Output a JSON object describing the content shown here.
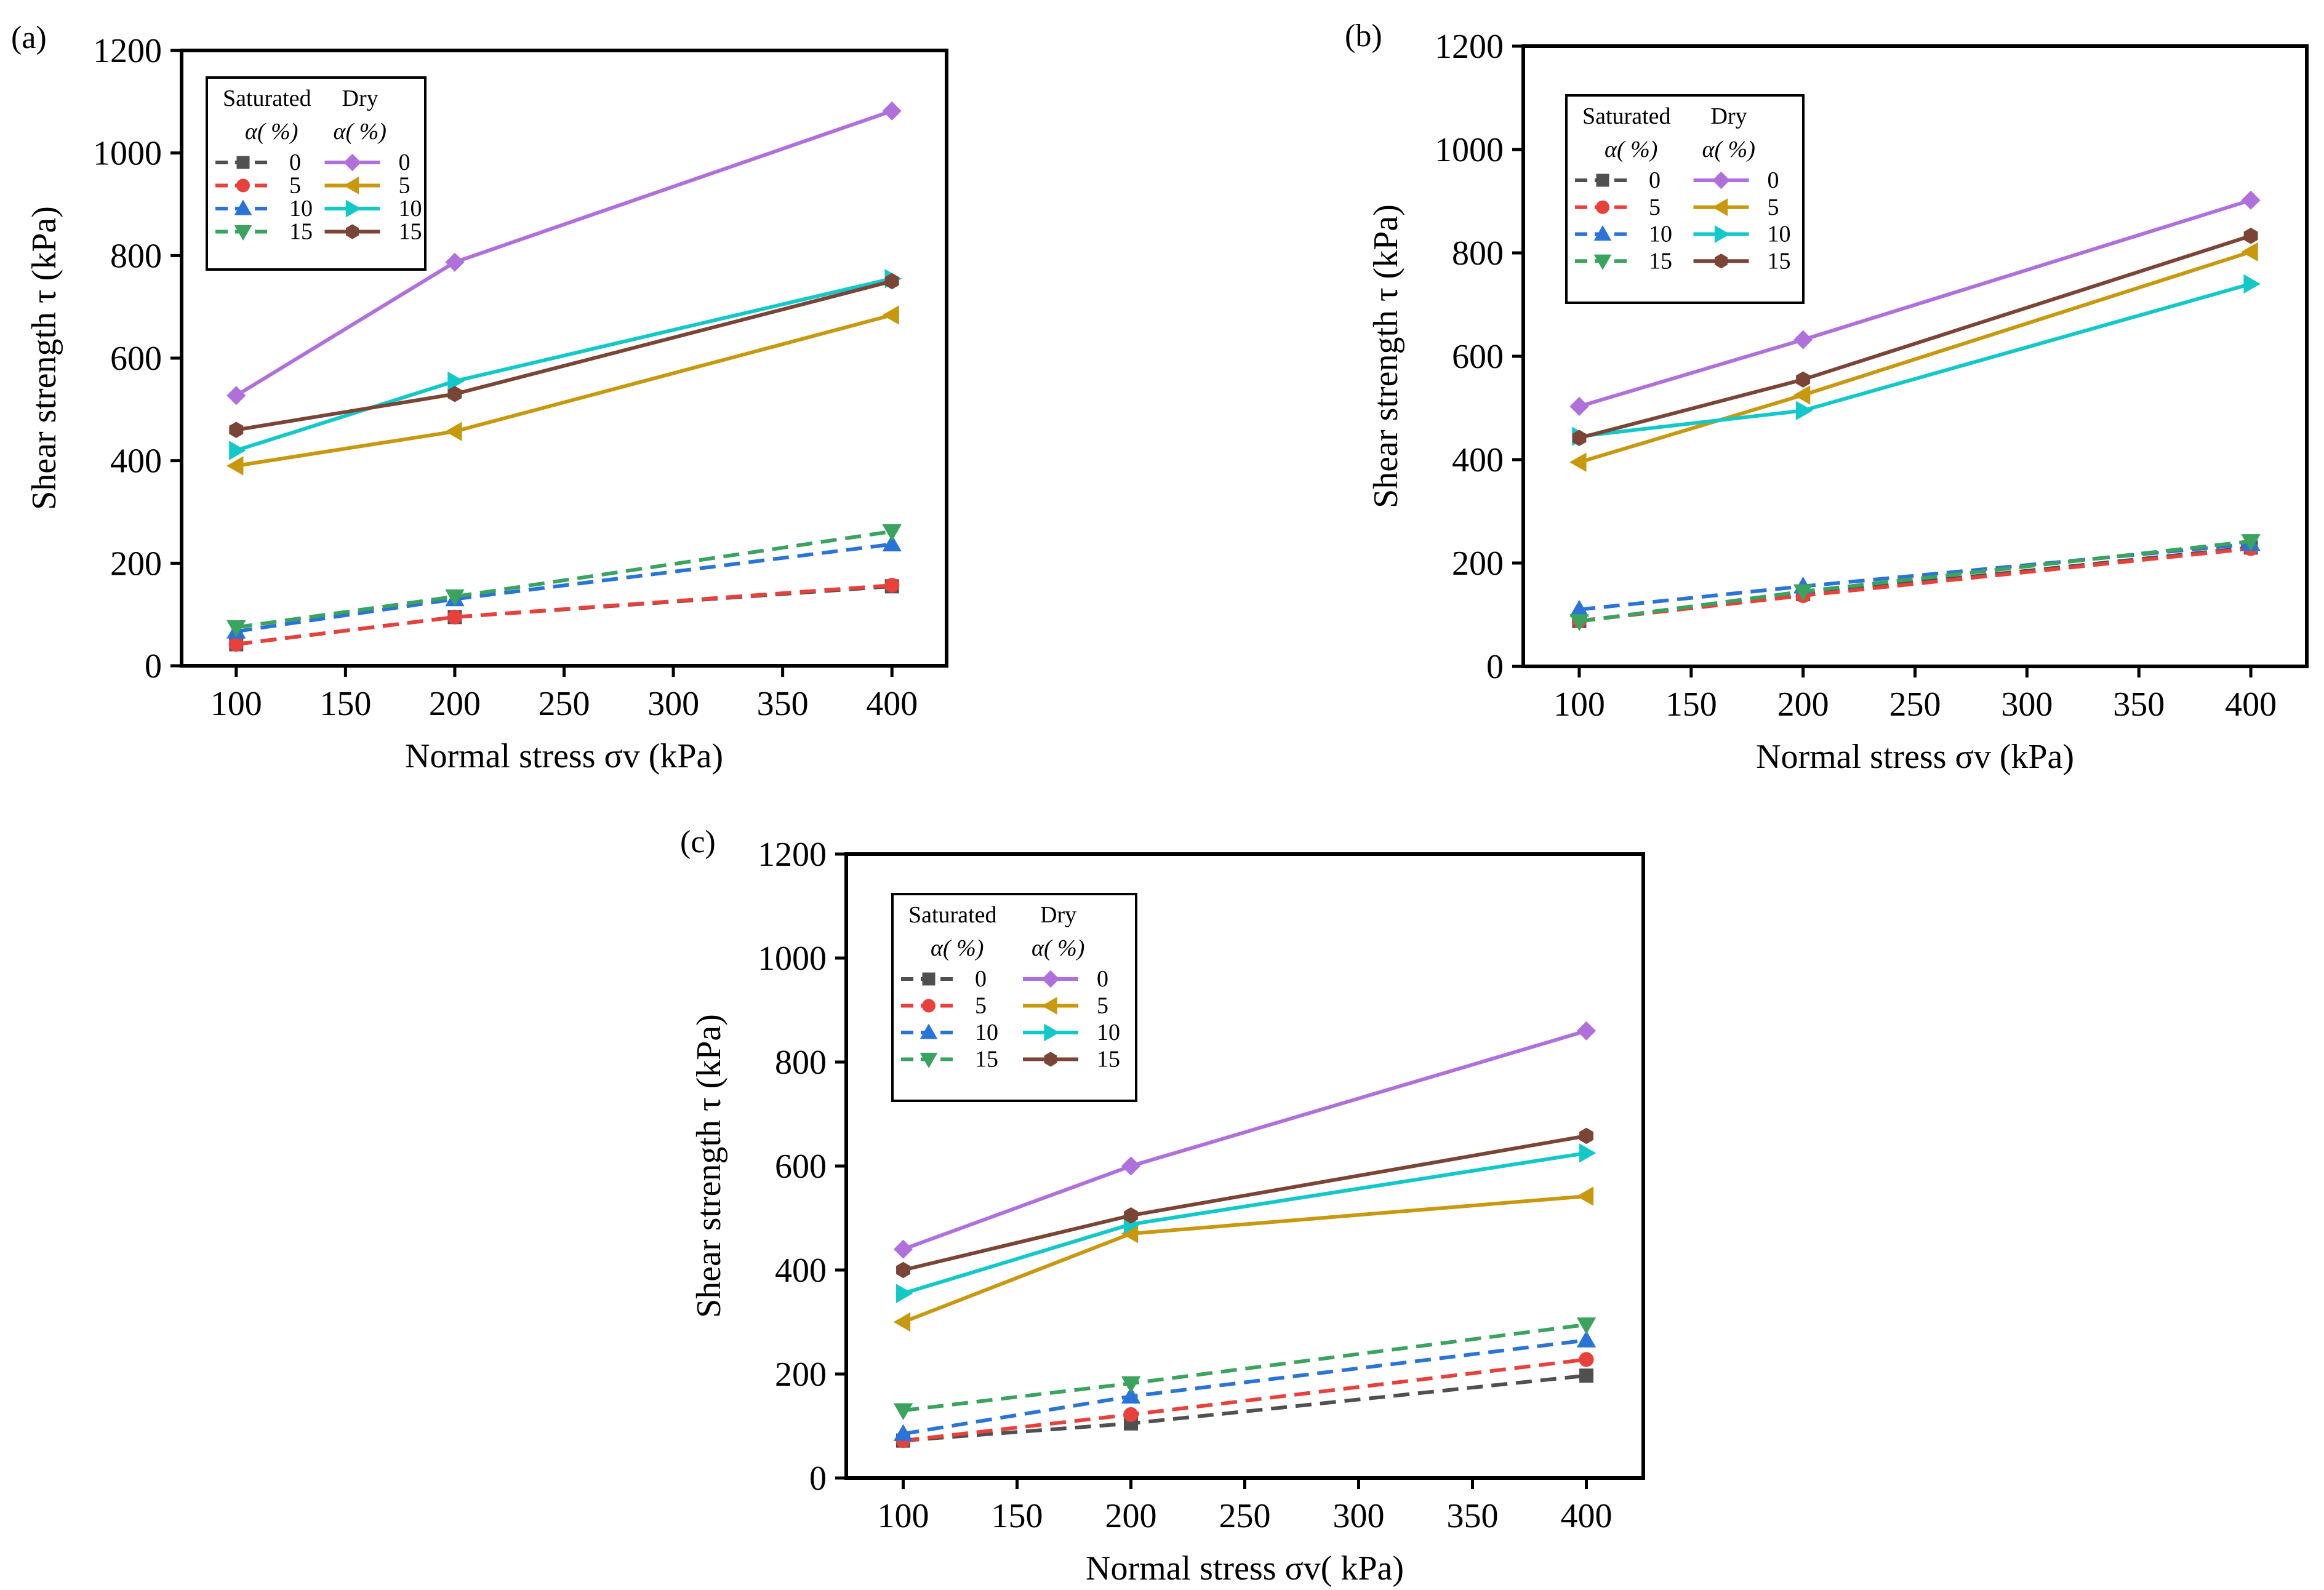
{
  "legend_header": {
    "saturated": "Saturated",
    "dry": "Dry",
    "alpha_label": "α(  %)"
  },
  "chart_data": [
    {
      "id": "a",
      "panel_label": "(a)",
      "type": "line",
      "xlabel": "Normal stress σv (kPa)",
      "ylabel": "Shear strength τ (kPa)",
      "xlim": [
        75,
        425
      ],
      "ylim": [
        0,
        1200
      ],
      "xticks": [
        100,
        150,
        200,
        250,
        300,
        350,
        400
      ],
      "yticks": [
        0,
        200,
        400,
        600,
        800,
        1000,
        1200
      ],
      "x": [
        100,
        200,
        400
      ],
      "series": [
        {
          "name": "0",
          "group": "Saturated",
          "dashed": true,
          "marker": "square",
          "color": "#505050",
          "values": [
            42,
            95,
            155
          ]
        },
        {
          "name": "5",
          "group": "Saturated",
          "dashed": true,
          "marker": "circle",
          "color": "#e8403a",
          "values": [
            42,
            95,
            157
          ]
        },
        {
          "name": "10",
          "group": "Saturated",
          "dashed": true,
          "marker": "triangle-up",
          "color": "#2a74d8",
          "values": [
            67,
            130,
            237
          ]
        },
        {
          "name": "15",
          "group": "Saturated",
          "dashed": true,
          "marker": "triangle-down",
          "color": "#3aa35e",
          "values": [
            75,
            135,
            262
          ]
        },
        {
          "name": "0",
          "group": "Dry",
          "dashed": false,
          "marker": "diamond",
          "color": "#b070dc",
          "values": [
            527,
            787,
            1082
          ]
        },
        {
          "name": "5",
          "group": "Dry",
          "dashed": false,
          "marker": "triangle-left",
          "color": "#c8980e",
          "values": [
            390,
            457,
            684
          ]
        },
        {
          "name": "10",
          "group": "Dry",
          "dashed": false,
          "marker": "triangle-right",
          "color": "#12c8c8",
          "values": [
            420,
            555,
            755
          ]
        },
        {
          "name": "15",
          "group": "Dry",
          "dashed": false,
          "marker": "hexagon",
          "color": "#7a4536",
          "values": [
            460,
            530,
            750
          ]
        }
      ]
    },
    {
      "id": "b",
      "panel_label": "(b)",
      "type": "line",
      "xlabel": "Normal stress σv (kPa)",
      "ylabel": "Shear strength τ (kPa)",
      "xlim": [
        75,
        425
      ],
      "ylim": [
        0,
        1200
      ],
      "xticks": [
        100,
        150,
        200,
        250,
        300,
        350,
        400
      ],
      "yticks": [
        0,
        200,
        400,
        600,
        800,
        1000,
        1200
      ],
      "x": [
        100,
        200,
        400
      ],
      "series": [
        {
          "name": "0",
          "group": "Saturated",
          "dashed": true,
          "marker": "square",
          "color": "#505050",
          "values": [
            88,
            140,
            230
          ]
        },
        {
          "name": "5",
          "group": "Saturated",
          "dashed": true,
          "marker": "circle",
          "color": "#e8403a",
          "values": [
            88,
            137,
            228
          ]
        },
        {
          "name": "10",
          "group": "Saturated",
          "dashed": true,
          "marker": "triangle-up",
          "color": "#2a74d8",
          "values": [
            110,
            155,
            237
          ]
        },
        {
          "name": "15",
          "group": "Saturated",
          "dashed": true,
          "marker": "triangle-down",
          "color": "#3aa35e",
          "values": [
            87,
            145,
            242
          ]
        },
        {
          "name": "0",
          "group": "Dry",
          "dashed": false,
          "marker": "diamond",
          "color": "#b070dc",
          "values": [
            503,
            632,
            902
          ]
        },
        {
          "name": "5",
          "group": "Dry",
          "dashed": false,
          "marker": "triangle-left",
          "color": "#c8980e",
          "values": [
            395,
            525,
            802
          ]
        },
        {
          "name": "10",
          "group": "Dry",
          "dashed": false,
          "marker": "triangle-right",
          "color": "#12c8c8",
          "values": [
            445,
            495,
            740
          ]
        },
        {
          "name": "15",
          "group": "Dry",
          "dashed": false,
          "marker": "hexagon",
          "color": "#7a4536",
          "values": [
            442,
            555,
            833
          ]
        }
      ]
    },
    {
      "id": "c",
      "panel_label": "(c)",
      "type": "line",
      "xlabel": "Normal stress σv(  kPa)",
      "ylabel": "Shear strength τ (kPa)",
      "xlim": [
        75,
        425
      ],
      "ylim": [
        0,
        1200
      ],
      "xticks": [
        100,
        150,
        200,
        250,
        300,
        350,
        400
      ],
      "yticks": [
        0,
        200,
        400,
        600,
        800,
        1000,
        1200
      ],
      "x": [
        100,
        200,
        400
      ],
      "series": [
        {
          "name": "0",
          "group": "Saturated",
          "dashed": true,
          "marker": "square",
          "color": "#505050",
          "values": [
            72,
            105,
            197
          ]
        },
        {
          "name": "5",
          "group": "Saturated",
          "dashed": true,
          "marker": "circle",
          "color": "#e8403a",
          "values": [
            72,
            122,
            228
          ]
        },
        {
          "name": "10",
          "group": "Saturated",
          "dashed": true,
          "marker": "triangle-up",
          "color": "#2a74d8",
          "values": [
            85,
            157,
            265
          ]
        },
        {
          "name": "15",
          "group": "Saturated",
          "dashed": true,
          "marker": "triangle-down",
          "color": "#3aa35e",
          "values": [
            130,
            182,
            295
          ]
        },
        {
          "name": "0",
          "group": "Dry",
          "dashed": false,
          "marker": "diamond",
          "color": "#b070dc",
          "values": [
            440,
            600,
            860
          ]
        },
        {
          "name": "5",
          "group": "Dry",
          "dashed": false,
          "marker": "triangle-left",
          "color": "#c8980e",
          "values": [
            300,
            470,
            542
          ]
        },
        {
          "name": "10",
          "group": "Dry",
          "dashed": false,
          "marker": "triangle-right",
          "color": "#12c8c8",
          "values": [
            355,
            488,
            625
          ]
        },
        {
          "name": "15",
          "group": "Dry",
          "dashed": false,
          "marker": "hexagon",
          "color": "#7a4536",
          "values": [
            400,
            505,
            658
          ]
        }
      ]
    }
  ]
}
